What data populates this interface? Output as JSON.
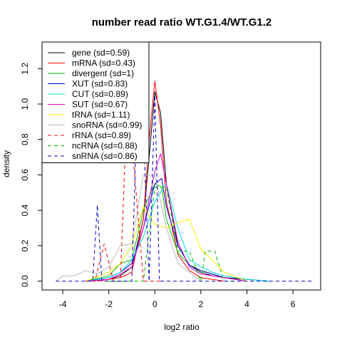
{
  "chart_data": {
    "type": "line",
    "title": "number read ratio WT.G1.4/WT.G1.2",
    "xlabel": "log2 ratio",
    "ylabel": "density",
    "xlim": [
      -4.9,
      7.2
    ],
    "ylim": [
      -0.05,
      1.35
    ],
    "x_ticks": [
      -4,
      -2,
      0,
      2,
      4,
      6
    ],
    "x_tick_labels": [
      "-4",
      "-2",
      "0",
      "2",
      "4",
      "6"
    ],
    "y_ticks": [
      0.0,
      0.2,
      0.4,
      0.6,
      0.8,
      1.0,
      1.2
    ],
    "y_tick_labels": [
      "0.0",
      "0.2",
      "0.4",
      "0.6",
      "0.8",
      "1.0",
      "1.2"
    ],
    "grid": false,
    "legend_position": "top-left",
    "series": [
      {
        "name": "gene (sd=0.59)",
        "color": "#000000",
        "dash": "solid",
        "x": [
          -3.0,
          -2.0,
          -1.5,
          -1.0,
          -0.5,
          -0.25,
          0.0,
          0.25,
          0.5,
          1.0,
          1.5,
          2.0,
          2.5,
          3.0,
          4.0,
          5.0
        ],
        "y": [
          0.0,
          0.01,
          0.03,
          0.08,
          0.35,
          0.7,
          1.07,
          0.95,
          0.55,
          0.2,
          0.09,
          0.05,
          0.03,
          0.02,
          0.01,
          0.0
        ]
      },
      {
        "name": "mRNA (sd=0.43)",
        "color": "#ff0000",
        "dash": "solid",
        "x": [
          -2.5,
          -1.5,
          -1.0,
          -0.5,
          -0.25,
          0.0,
          0.25,
          0.5,
          1.0,
          1.5,
          2.0,
          3.0
        ],
        "y": [
          0.0,
          0.02,
          0.05,
          0.35,
          0.8,
          1.13,
          0.88,
          0.45,
          0.15,
          0.06,
          0.02,
          0.0
        ]
      },
      {
        "name": "divergent (sd=1)",
        "color": "#00bb00",
        "dash": "solid",
        "x": [
          -3.0,
          -2.0,
          -1.5,
          -1.0,
          -0.5,
          0.0,
          0.3,
          0.5,
          1.0,
          1.5,
          2.0,
          2.5,
          3.0,
          4.0
        ],
        "y": [
          0.0,
          0.03,
          0.1,
          0.12,
          0.4,
          0.55,
          0.53,
          0.35,
          0.16,
          0.09,
          0.06,
          0.04,
          0.02,
          0.0
        ]
      },
      {
        "name": "XUT (sd=0.83)",
        "color": "#0000cc",
        "dash": "solid",
        "x": [
          -3.0,
          -2.0,
          -1.5,
          -1.0,
          -0.5,
          0.0,
          0.3,
          0.5,
          1.0,
          1.5,
          2.0,
          2.5,
          3.0,
          4.0
        ],
        "y": [
          0.0,
          0.02,
          0.05,
          0.1,
          0.3,
          0.55,
          0.58,
          0.42,
          0.2,
          0.09,
          0.06,
          0.04,
          0.02,
          0.0
        ]
      },
      {
        "name": "CUT (sd=0.89)",
        "color": "#00dddd",
        "dash": "solid",
        "x": [
          -3.0,
          -2.0,
          -1.5,
          -1.0,
          -0.5,
          0.0,
          0.5,
          1.0,
          1.5,
          2.0,
          2.5,
          3.0,
          4.0,
          5.0
        ],
        "y": [
          0.0,
          0.02,
          0.05,
          0.12,
          0.25,
          0.45,
          0.55,
          0.3,
          0.12,
          0.08,
          0.05,
          0.03,
          0.01,
          0.0
        ]
      },
      {
        "name": "SUT (sd=0.67)",
        "color": "#dd00dd",
        "dash": "solid",
        "x": [
          -3.0,
          -2.0,
          -1.5,
          -1.0,
          -0.5,
          0.0,
          0.25,
          0.5,
          1.0,
          1.5,
          2.0,
          3.0,
          4.0
        ],
        "y": [
          0.0,
          0.01,
          0.04,
          0.08,
          0.3,
          0.62,
          0.72,
          0.55,
          0.22,
          0.08,
          0.04,
          0.02,
          0.0
        ]
      },
      {
        "name": "tRNA (sd=1.11)",
        "color": "#ffee00",
        "dash": "solid",
        "x": [
          -3.0,
          -2.0,
          -1.5,
          -1.0,
          -0.5,
          0.0,
          0.5,
          1.0,
          1.5,
          2.0,
          2.5,
          3.0,
          4.0
        ],
        "y": [
          0.0,
          0.05,
          0.1,
          0.2,
          0.42,
          0.32,
          0.3,
          0.33,
          0.35,
          0.18,
          0.12,
          0.05,
          0.0
        ]
      },
      {
        "name": "snoRNA (sd=0.99)",
        "color": "#bbbbbb",
        "dash": "solid",
        "x": [
          -4.3,
          -4.0,
          -3.5,
          -3.0,
          -2.5,
          -2.0,
          -1.5,
          -1.0,
          -0.5,
          0.0,
          0.5,
          1.0,
          1.5,
          2.0
        ],
        "y": [
          0.0,
          0.03,
          0.03,
          0.06,
          0.04,
          0.08,
          0.2,
          0.21,
          0.6,
          0.6,
          0.3,
          0.1,
          0.05,
          0.0
        ]
      },
      {
        "name": "rRNA (sd=0.89)",
        "color": "#ff0000",
        "dash": "dashed",
        "x": [
          -3.0,
          -2.6,
          -2.2,
          -1.8,
          -1.5,
          -1.3,
          -1.0,
          -0.5,
          0.0,
          0.3
        ],
        "y": [
          0.0,
          0.0,
          0.21,
          0.0,
          0.0,
          0.68,
          0.8,
          0.0,
          0.0,
          0.0
        ]
      },
      {
        "name": "ncRNA (sd=0.88)",
        "color": "#00bb00",
        "dash": "dashed",
        "x": [
          -2.0,
          -1.5,
          -1.0,
          -0.5,
          0.0,
          0.5,
          1.0,
          1.5,
          2.0,
          2.2,
          2.6,
          3.0,
          3.5
        ],
        "y": [
          0.0,
          0.0,
          0.0,
          0.0,
          0.53,
          0.53,
          0.17,
          0.17,
          0.0,
          0.17,
          0.17,
          0.0,
          0.0
        ]
      },
      {
        "name": "snRNA (sd=0.86)",
        "color": "#0000cc",
        "dash": "dashed",
        "x": [
          -4.3,
          -3.0,
          -2.7,
          -2.5,
          -2.3,
          -2.0,
          -1.0,
          -0.8,
          -0.5,
          -0.25,
          0.0,
          0.2,
          0.4,
          0.7,
          1.0,
          3.0,
          4.0,
          5.0,
          6.0,
          6.8
        ],
        "y": [
          0.0,
          0.0,
          0.0,
          0.43,
          0.0,
          0.0,
          0.0,
          0.86,
          0.86,
          0.0,
          1.05,
          0.0,
          0.0,
          0.0,
          0.0,
          0.0,
          0.0,
          0.0,
          0.0,
          0.0
        ]
      }
    ]
  }
}
